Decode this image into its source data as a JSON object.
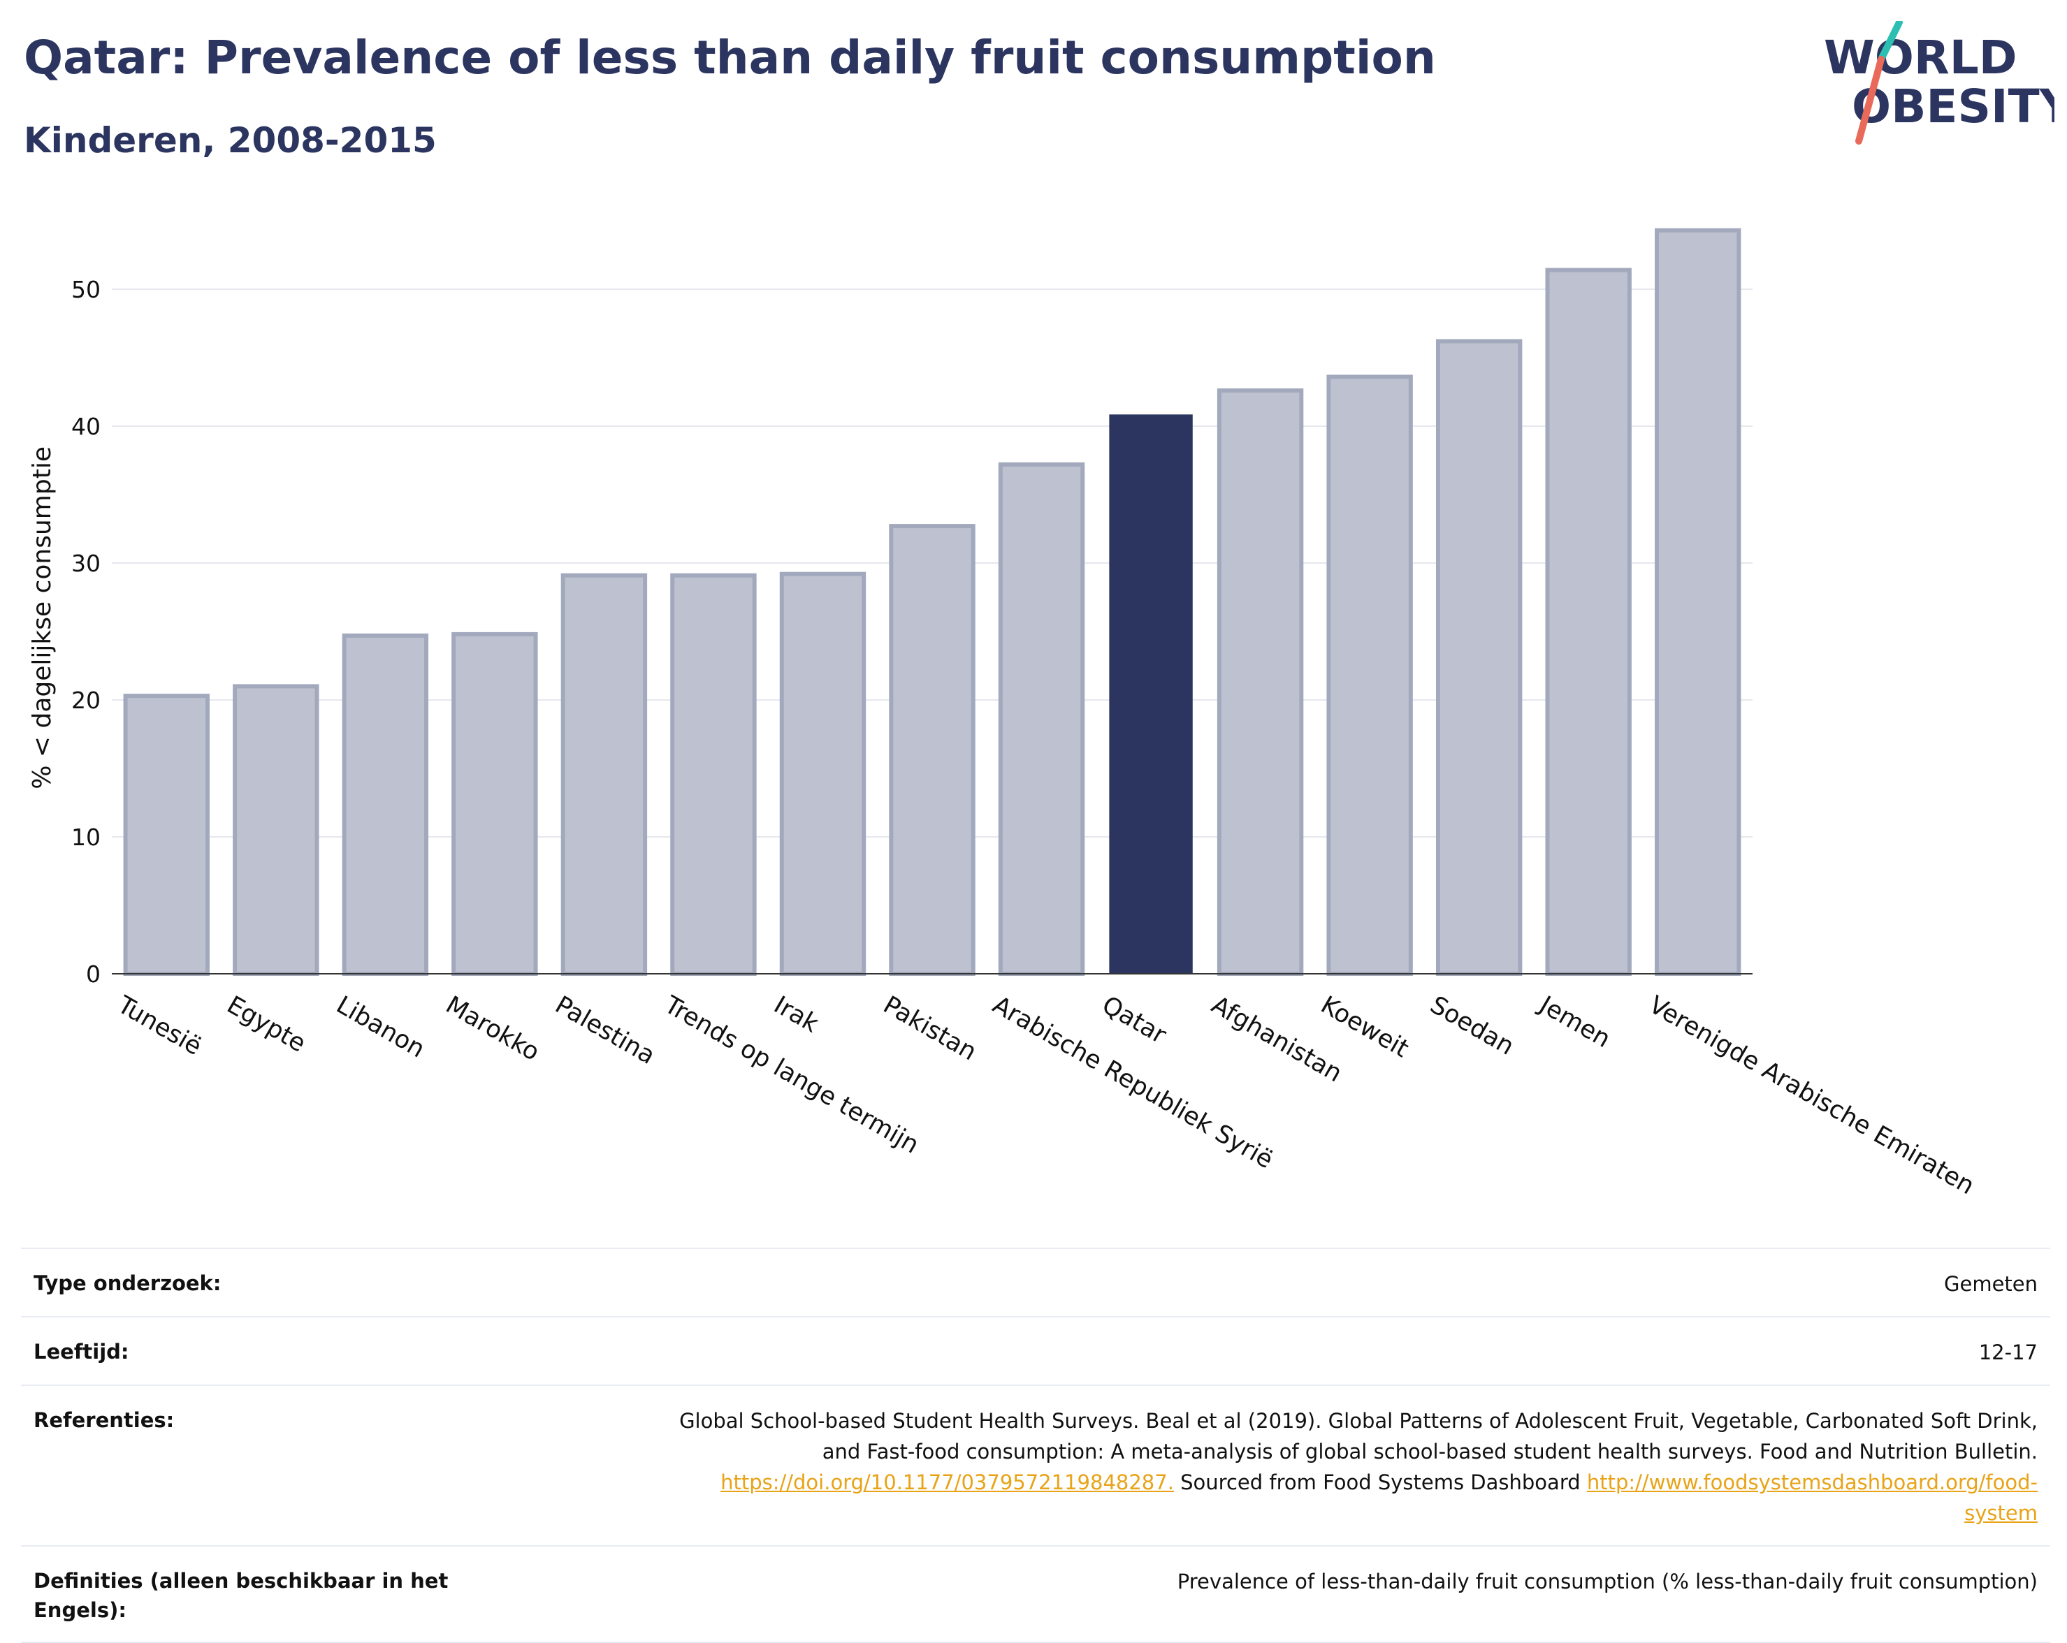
{
  "header": {
    "title": "Qatar: Prevalence of less than daily fruit consumption",
    "subtitle": "Kinderen, 2008-2015"
  },
  "logo": {
    "line1": "WORLD",
    "line2": "OBESITY",
    "icon": "world-obesity-logo"
  },
  "colors": {
    "highlight": "#2b3560",
    "bar_fill": "#bec2d0",
    "bar_edge": "#a3a9bd",
    "grid": "#e6e8ee",
    "link": "#e8a317"
  },
  "chart_data": {
    "type": "bar",
    "ylabel": "% < dagelijkse consumptie",
    "xlabel": "",
    "ylim": [
      0,
      56
    ],
    "yticks": [
      0,
      10,
      20,
      30,
      40,
      50
    ],
    "grid": true,
    "highlight_category": "Qatar",
    "categories": [
      "Tunesië",
      "Egypte",
      "Libanon",
      "Marokko",
      "Palestina",
      "Trends op lange termijn",
      "Irak",
      "Pakistan",
      "Arabische Republiek Syrië",
      "Qatar",
      "Afghanistan",
      "Koeweit",
      "Soedan",
      "Jemen",
      "Verenigde Arabische Emiraten"
    ],
    "values": [
      20.3,
      21.0,
      24.7,
      24.8,
      29.1,
      29.1,
      29.2,
      32.7,
      37.2,
      40.8,
      42.6,
      43.6,
      46.2,
      51.4,
      54.3
    ]
  },
  "info_table": {
    "survey_label": "Type onderzoek:",
    "survey_value": "Gemeten",
    "age_label": "Leeftijd:",
    "age_value": "12-17",
    "ref_label": "Referenties:",
    "ref_line1": "Global School-based Student Health Surveys. Beal et al (2019). Global Patterns of Adolescent Fruit, Vegetable, Carbonated Soft Drink,",
    "ref_line2": "and Fast-food consumption: A meta-analysis of global school-based student health surveys. Food and Nutrition Bulletin.",
    "ref_link1": "https://doi.org/10.1177/0379572119848287.",
    "ref_mid": " Sourced from Food Systems Dashboard ",
    "ref_link2a": "http://www.foodsystemsdashboard.org/food-",
    "ref_link2b": "system",
    "def_label": "Definities (alleen beschikbaar in het Engels):",
    "def_value": "Prevalence of less-than-daily fruit consumption (% less-than-daily fruit consumption)"
  }
}
